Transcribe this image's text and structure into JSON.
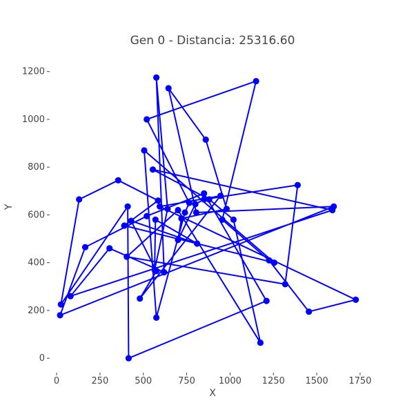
{
  "chart_data": {
    "type": "line",
    "title": "Gen 0 - Distancia: 25316.60",
    "xlabel": "X",
    "ylabel": "Y",
    "xlim": [
      -40,
      1830
    ],
    "ylim": [
      -60,
      1280
    ],
    "x_ticks": [
      0,
      250,
      500,
      750,
      1000,
      1250,
      1500,
      1750
    ],
    "y_ticks": [
      0,
      200,
      400,
      600,
      800,
      1000,
      1200
    ],
    "x_tick_labels": [
      "0",
      "250",
      "500",
      "750",
      "1000",
      "1250",
      "1500",
      "1750"
    ],
    "y_tick_labels": [
      "0",
      "200",
      "400",
      "600",
      "800",
      "1000",
      "1200"
    ],
    "grid": false,
    "series": [
      {
        "color": "#0000ff",
        "marker": "circle",
        "x": [
          575,
          480,
          945,
          595,
          1725,
          1455,
          1225,
          955,
          1150,
          520,
          765,
          740,
          575,
          505,
          1255,
          390,
          585,
          355,
          130,
          25,
          410,
          415,
          1210,
          850,
          520,
          165,
          20,
          1598,
          805,
          645,
          860,
          980,
          720,
          700,
          800,
          850,
          1390,
          1318,
          405,
          700,
          1175,
          1020,
          880,
          555,
          1590,
          80,
          305,
          620,
          575,
          640,
          565,
          570,
          810,
          430,
          575
        ],
        "y": [
          365,
          250,
          680,
          635,
          245,
          195,
          410,
          580,
          1160,
          1000,
          650,
          610,
          170,
          870,
          400,
          555,
          660,
          745,
          665,
          225,
          635,
          0,
          240,
          690,
          595,
          465,
          180,
          635,
          610,
          1130,
          915,
          625,
          585,
          495,
          645,
          665,
          725,
          310,
          425,
          620,
          65,
          580,
          665,
          790,
          620,
          260,
          460,
          360,
          1175,
          625,
          370,
          580,
          480,
          575,
          365
        ]
      }
    ]
  }
}
